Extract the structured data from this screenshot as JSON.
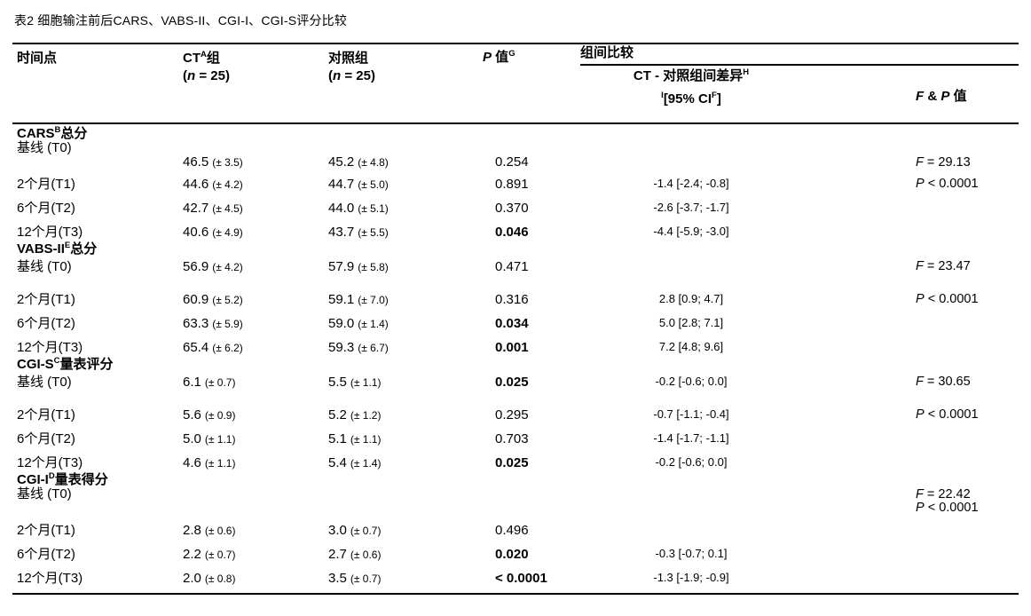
{
  "title": "表2 细胞输注前后CARS、VABS-II、CGI-I、CGI-S评分比较",
  "header": {
    "time_point": "时间点",
    "ct_group": {
      "name": "CT",
      "sup": "A",
      "suffix": "组"
    },
    "control_group": "对照组",
    "n_label": {
      "open": "(",
      "n": "n",
      "rest": " = 25)"
    },
    "p_value": {
      "p": "P",
      "rest": " 值",
      "sup": "G"
    },
    "between_group": "组间比较",
    "diff": {
      "text": "CT - 对照组间差异",
      "sup": "H"
    },
    "ci": {
      "sup_pre": "I",
      "text": "[95% CI",
      "sup": "F",
      "tail": "]"
    },
    "f_p": {
      "f": "F",
      "mid": " & ",
      "p": "P",
      "rest": " 值"
    }
  },
  "sections": [
    {
      "label": {
        "pre": "CARS",
        "sup": "B",
        "post": "总分"
      },
      "rows": [
        {
          "time": "基线 (T0)",
          "compact": true
        },
        {
          "ct": [
            "46.5",
            "(± 3.5)"
          ],
          "ctrl": [
            "45.2",
            "(± 4.8)"
          ],
          "p": "0.254",
          "fp": "F = 29.13",
          "compact": true
        },
        {
          "time": "2个月(T1)",
          "ct": [
            "44.6",
            "(± 4.2)"
          ],
          "ctrl": [
            "44.7",
            "(± 5.0)"
          ],
          "p": "0.891",
          "diff": "-1.4 [-2.4; -0.8]",
          "fp": "P < 0.0001"
        },
        {
          "time": "6个月(T2)",
          "ct": [
            "42.7",
            "(± 4.5)"
          ],
          "ctrl": [
            "44.0",
            "(± 5.1)"
          ],
          "p": "0.370",
          "diff": "-2.6 [-3.7; -1.7]"
        },
        {
          "time": "12个月(T3)",
          "ct": [
            "40.6",
            "(± 4.9)"
          ],
          "ctrl": [
            "43.7",
            "(± 5.5)"
          ],
          "p": "0.046",
          "p_bold": true,
          "diff": "-4.4 [-5.9; -3.0]"
        }
      ]
    },
    {
      "label": {
        "pre": "VABS-II",
        "sup": "E",
        "post": "总分"
      },
      "rows": [
        {
          "time": "基线 (T0)",
          "ct": [
            "56.9",
            "(± 4.2)"
          ],
          "ctrl": [
            "57.9",
            "(± 5.8)"
          ],
          "p": "0.471",
          "fp": "F = 23.47",
          "semi": true
        },
        {
          "time": "2个月(T1)",
          "ct": [
            "60.9",
            "(± 5.2)"
          ],
          "ctrl": [
            "59.1",
            "(± 7.0)"
          ],
          "p": "0.316",
          "diff": "2.8 [0.9; 4.7]",
          "fp": "P < 0.0001",
          "extra_space": true
        },
        {
          "time": "6个月(T2)",
          "ct": [
            "63.3",
            "(± 5.9)"
          ],
          "ctrl": [
            "59.0",
            "(± 1.4)"
          ],
          "p": "0.034",
          "p_bold": true,
          "diff": "5.0 [2.8; 7.1]"
        },
        {
          "time": "12个月(T3)",
          "ct": [
            "65.4",
            "(± 6.2)"
          ],
          "ctrl": [
            "59.3",
            "(± 6.7)"
          ],
          "p": "0.001",
          "p_bold": true,
          "diff": "7.2 [4.8; 9.6]"
        }
      ]
    },
    {
      "label": {
        "pre": "CGI-S",
        "sup": "C",
        "post": "量表评分"
      },
      "rows": [
        {
          "time": "基线 (T0)",
          "ct": [
            "6.1",
            "(± 0.7)"
          ],
          "ctrl": [
            "5.5",
            "(± 1.1)"
          ],
          "p": "0.025",
          "p_bold": true,
          "diff": "-0.2 [-0.6; 0.0]",
          "fp": "F = 30.65",
          "semi": true
        },
        {
          "time": "2个月(T1)",
          "ct": [
            "5.6",
            "(± 0.9)"
          ],
          "ctrl": [
            "5.2",
            "(± 1.2)"
          ],
          "p": "0.295",
          "diff": "-0.7 [-1.1; -0.4]",
          "fp": "P < 0.0001",
          "extra_space": true
        },
        {
          "time": "6个月(T2)",
          "ct": [
            "5.0",
            "(± 1.1)"
          ],
          "ctrl": [
            "5.1",
            "(± 1.1)"
          ],
          "p": "0.703",
          "diff": "-1.4 [-1.7; -1.1]"
        },
        {
          "time": "12个月(T3)",
          "ct": [
            "4.6",
            "(± 1.1)"
          ],
          "ctrl": [
            "5.4",
            "(± 1.4)"
          ],
          "p": "0.025",
          "p_bold": true,
          "diff": "-0.2 [-0.6; 0.0]"
        }
      ]
    },
    {
      "label": {
        "pre": "CGI-I",
        "sup": "D",
        "post": "量表得分"
      },
      "rows": [
        {
          "time": "基线 (T0)",
          "fp": "F = 22.42",
          "compact": true
        },
        {
          "fp": "P < 0.0001",
          "compact": true
        },
        {
          "time": "2个月(T1)",
          "ct": [
            "2.8",
            "(± 0.6)"
          ],
          "ctrl": [
            "3.0",
            "(± 0.7)"
          ],
          "p": "0.496"
        },
        {
          "time": "6个月(T2)",
          "ct": [
            "2.2",
            "(± 0.7)"
          ],
          "ctrl": [
            "2.7",
            "(± 0.6)"
          ],
          "p": "0.020",
          "p_bold": true,
          "diff": "-0.3 [-0.7; 0.1]"
        },
        {
          "time": "12个月(T3)",
          "ct": [
            "2.0",
            "(± 0.8)"
          ],
          "ctrl": [
            "3.5",
            "(± 0.7)"
          ],
          "p": "< 0.0001",
          "p_bold": true,
          "diff": "-1.3 [-1.9; -0.9]"
        }
      ]
    }
  ]
}
